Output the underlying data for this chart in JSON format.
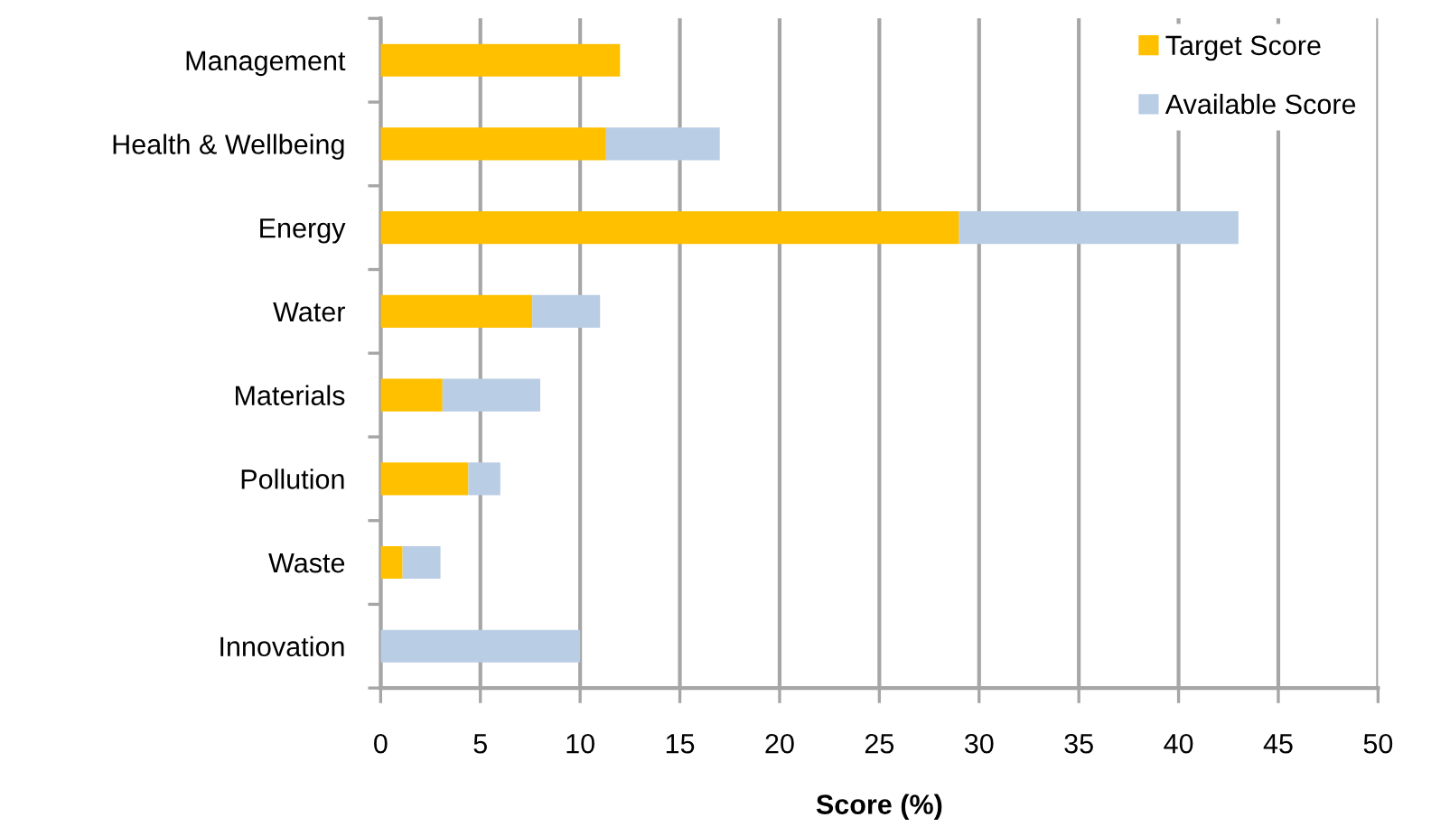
{
  "chart_data": {
    "type": "bar",
    "orientation": "horizontal",
    "stacked": true,
    "categories": [
      "Management",
      "Health & Wellbeing",
      "Energy",
      "Water",
      "Materials",
      "Pollution",
      "Waste",
      "Innovation"
    ],
    "series": [
      {
        "name": "Target Score",
        "color": "#ffc000",
        "values": [
          12,
          11.3,
          29,
          7.6,
          3.1,
          4.4,
          1.1,
          0
        ]
      },
      {
        "name": "Available Score",
        "color": "#b9cde5",
        "values": [
          0,
          5.7,
          14,
          3.4,
          4.9,
          1.6,
          1.9,
          10
        ]
      }
    ],
    "xlabel": "Score (%)",
    "xlim": [
      0,
      50
    ],
    "xticks": [
      0,
      5,
      10,
      15,
      20,
      25,
      30,
      35,
      40,
      45,
      50
    ],
    "grid": "x",
    "legend": "top right"
  }
}
